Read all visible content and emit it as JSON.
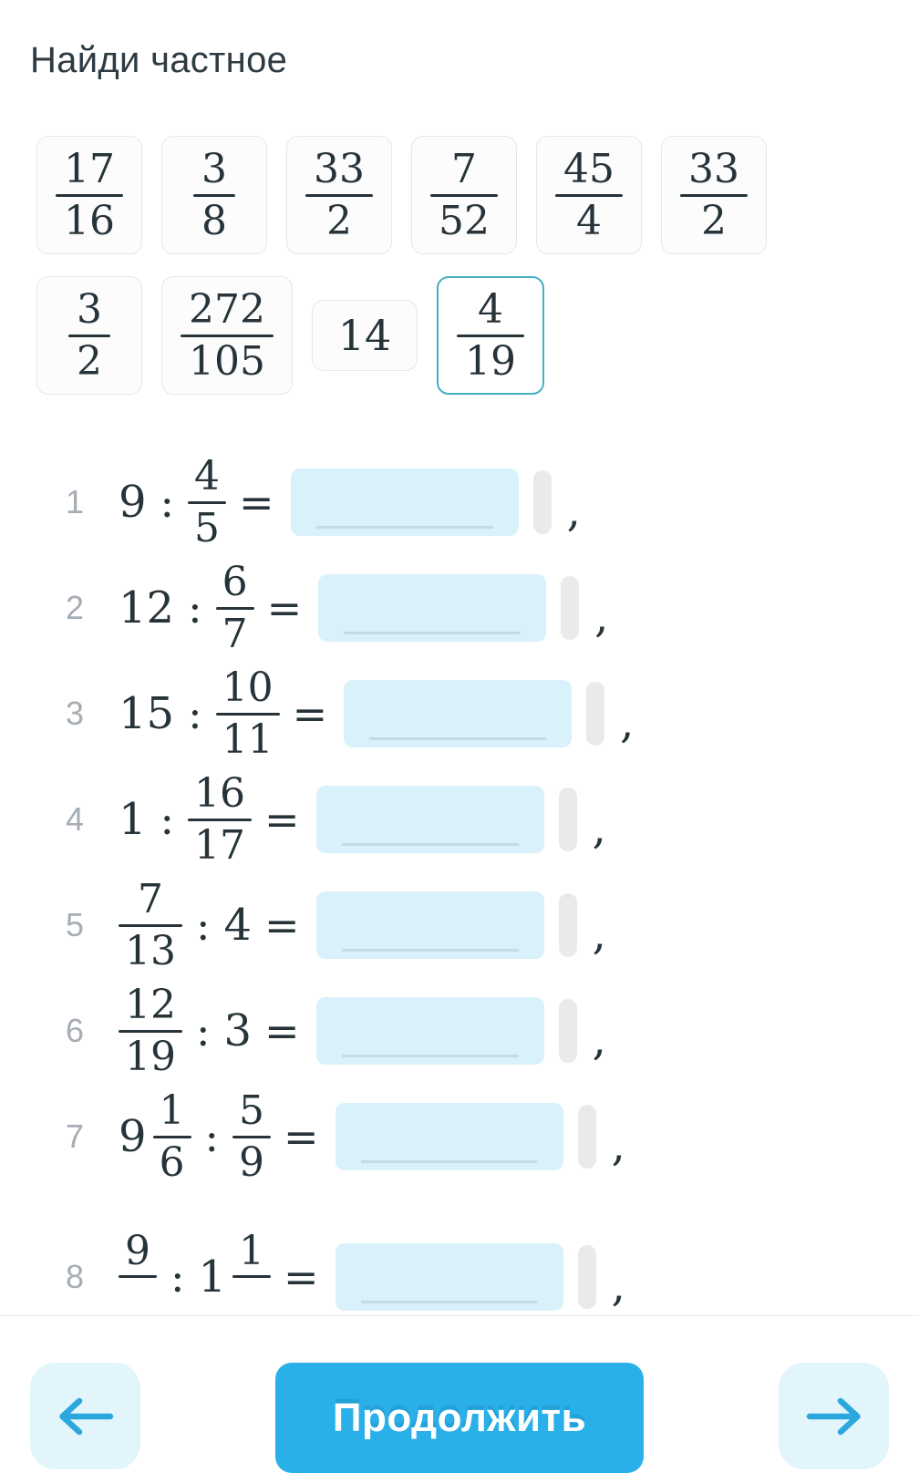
{
  "title": "Найди частное",
  "symbols": {
    "divide": ":",
    "equals": "=",
    "separator": ","
  },
  "chips": [
    {
      "num": "17",
      "den": "16",
      "selected": false
    },
    {
      "num": "3",
      "den": "8",
      "selected": false
    },
    {
      "num": "33",
      "den": "2",
      "selected": false
    },
    {
      "num": "7",
      "den": "52",
      "selected": false
    },
    {
      "num": "45",
      "den": "4",
      "selected": false
    },
    {
      "num": "33",
      "den": "2",
      "selected": false
    },
    {
      "num": "3",
      "den": "2",
      "selected": false
    },
    {
      "num": "272",
      "den": "105",
      "selected": false
    },
    {
      "whole": "14",
      "selected": false
    },
    {
      "num": "4",
      "den": "19",
      "selected": true
    }
  ],
  "problems": [
    {
      "index": "1",
      "dividend": {
        "whole": "9"
      },
      "divisor": {
        "num": "4",
        "den": "5"
      },
      "answer": ""
    },
    {
      "index": "2",
      "dividend": {
        "whole": "12"
      },
      "divisor": {
        "num": "6",
        "den": "7"
      },
      "answer": ""
    },
    {
      "index": "3",
      "dividend": {
        "whole": "15"
      },
      "divisor": {
        "num": "10",
        "den": "11"
      },
      "answer": ""
    },
    {
      "index": "4",
      "dividend": {
        "whole": "1"
      },
      "divisor": {
        "num": "16",
        "den": "17"
      },
      "answer": ""
    },
    {
      "index": "5",
      "dividend": {
        "num": "7",
        "den": "13"
      },
      "divisor": {
        "whole": "4"
      },
      "answer": ""
    },
    {
      "index": "6",
      "dividend": {
        "num": "12",
        "den": "19"
      },
      "divisor": {
        "whole": "3"
      },
      "answer": ""
    },
    {
      "index": "7",
      "dividend": {
        "whole": "9",
        "num": "1",
        "den": "6"
      },
      "divisor": {
        "num": "5",
        "den": "9"
      },
      "answer": ""
    },
    {
      "index": "8",
      "dividend": {
        "num": "9",
        "den": ""
      },
      "divisor": {
        "whole": "1",
        "num": "1",
        "den": ""
      },
      "answer": "",
      "clipped": true
    }
  ],
  "footer": {
    "continue_label": "Продолжить",
    "back_icon": "arrow-left",
    "forward_icon": "arrow-right"
  },
  "colors": {
    "title_text": "#2E3B43",
    "math_text": "#263339",
    "index_gray": "#A6ADB4",
    "chip_bg": "#FCFCFD",
    "chip_border": "#E5E7E8",
    "chip_selected_border": "#44AFC5",
    "answer_box_bg": "#D8F1FA",
    "answer_underline": "#C2DBE6",
    "pill_gray": "#E9EAEB",
    "footer_divider": "#EAEBEC",
    "nav_button_bg": "#E1F5FA",
    "arrow_blue": "#2BA7DD",
    "continue_bg": "#2AB0E8",
    "continue_text": "#FFFFFF"
  }
}
